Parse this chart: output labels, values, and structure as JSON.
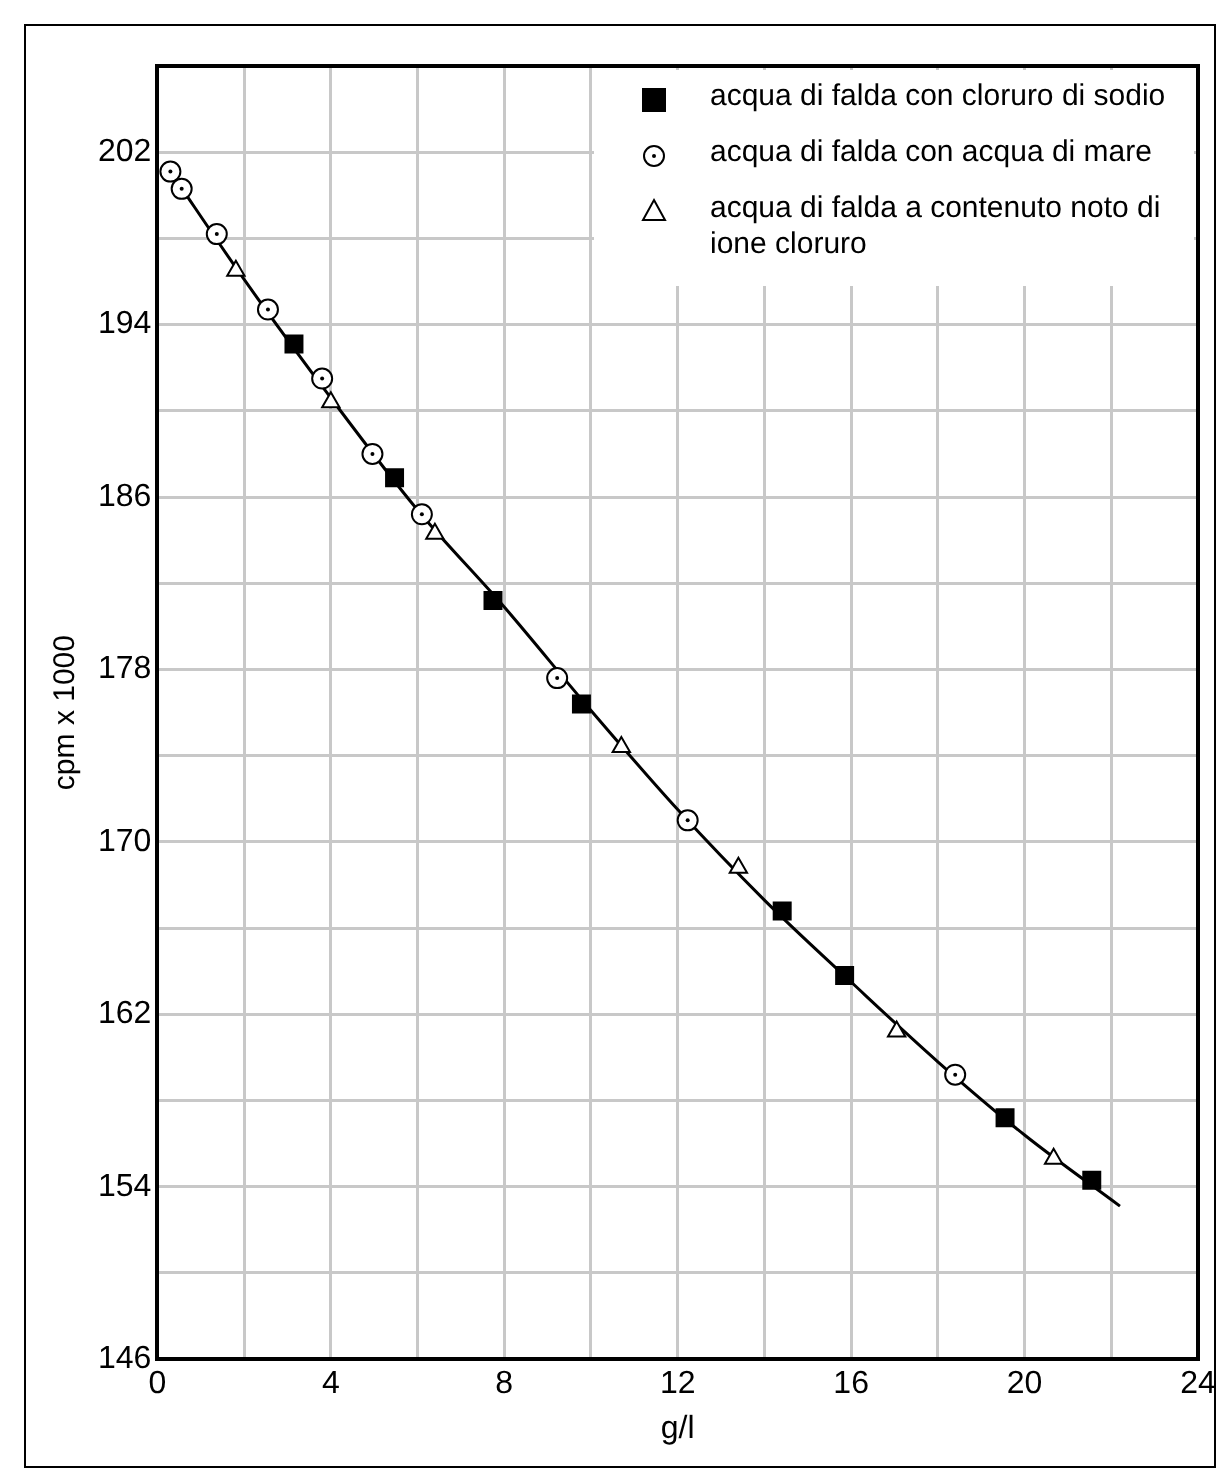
{
  "chart_data": {
    "type": "scatter",
    "xlabel": "g/l",
    "ylabel": "cpm x 1000",
    "xlim": [
      0,
      24
    ],
    "ylim": [
      146,
      206
    ],
    "xticks": [
      0,
      {
        "value": 2,
        "label": null
      },
      4,
      {
        "value": 6,
        "label": null
      },
      8,
      {
        "value": 10,
        "label": null
      },
      12,
      {
        "value": 14,
        "label": null
      },
      16,
      {
        "value": 18,
        "label": null
      },
      20,
      {
        "value": 22,
        "label": null
      },
      24
    ],
    "yticks": [
      146,
      {
        "value": 150,
        "label": null
      },
      154,
      {
        "value": 158,
        "label": null
      },
      162,
      {
        "value": 166,
        "label": null
      },
      170,
      {
        "value": 174,
        "label": null
      },
      178,
      {
        "value": 182,
        "label": null
      },
      186,
      {
        "value": 190,
        "label": null
      },
      194,
      {
        "value": 198,
        "label": null
      },
      202
    ],
    "grid": true,
    "legend": "top right",
    "series": [
      {
        "type": "line",
        "color": "#000000",
        "marker": "none",
        "line_style": "solid",
        "x": [
          0.3,
          2,
          4,
          6,
          8,
          10,
          12,
          14,
          16,
          18,
          20,
          22.2
        ],
        "values": [
          201.1,
          196.1,
          190.6,
          185.4,
          180.9,
          176.1,
          171.5,
          167.3,
          163.5,
          159.8,
          156.4,
          153.1
        ]
      },
      {
        "name": "acqua di falda con cloruro di sodio",
        "color": "#000000",
        "marker": "square",
        "x": [
          3.15,
          5.47,
          7.74,
          9.78,
          14.41,
          15.85,
          19.55,
          21.55
        ],
        "values": [
          193.1,
          186.9,
          181.2,
          176.4,
          166.8,
          163.8,
          157.2,
          154.3
        ]
      },
      {
        "name": "acqua di falda con acqua di mare",
        "color": "#000000",
        "marker": "circle",
        "x": [
          0.3,
          0.56,
          1.37,
          2.55,
          3.8,
          4.96,
          6.1,
          9.22,
          12.23,
          18.4
        ],
        "values": [
          201.1,
          200.3,
          198.2,
          194.7,
          191.5,
          188.0,
          185.2,
          177.6,
          171.0,
          159.2
        ]
      },
      {
        "name": "acqua di falda a contenuto noto di ione cloruro",
        "color": "#000000",
        "marker": "triangle",
        "x": [
          1.81,
          4.0,
          6.4,
          10.7,
          13.4,
          17.05,
          20.67
        ],
        "values": [
          196.5,
          190.4,
          184.3,
          174.4,
          168.8,
          161.2,
          155.3
        ]
      }
    ]
  }
}
